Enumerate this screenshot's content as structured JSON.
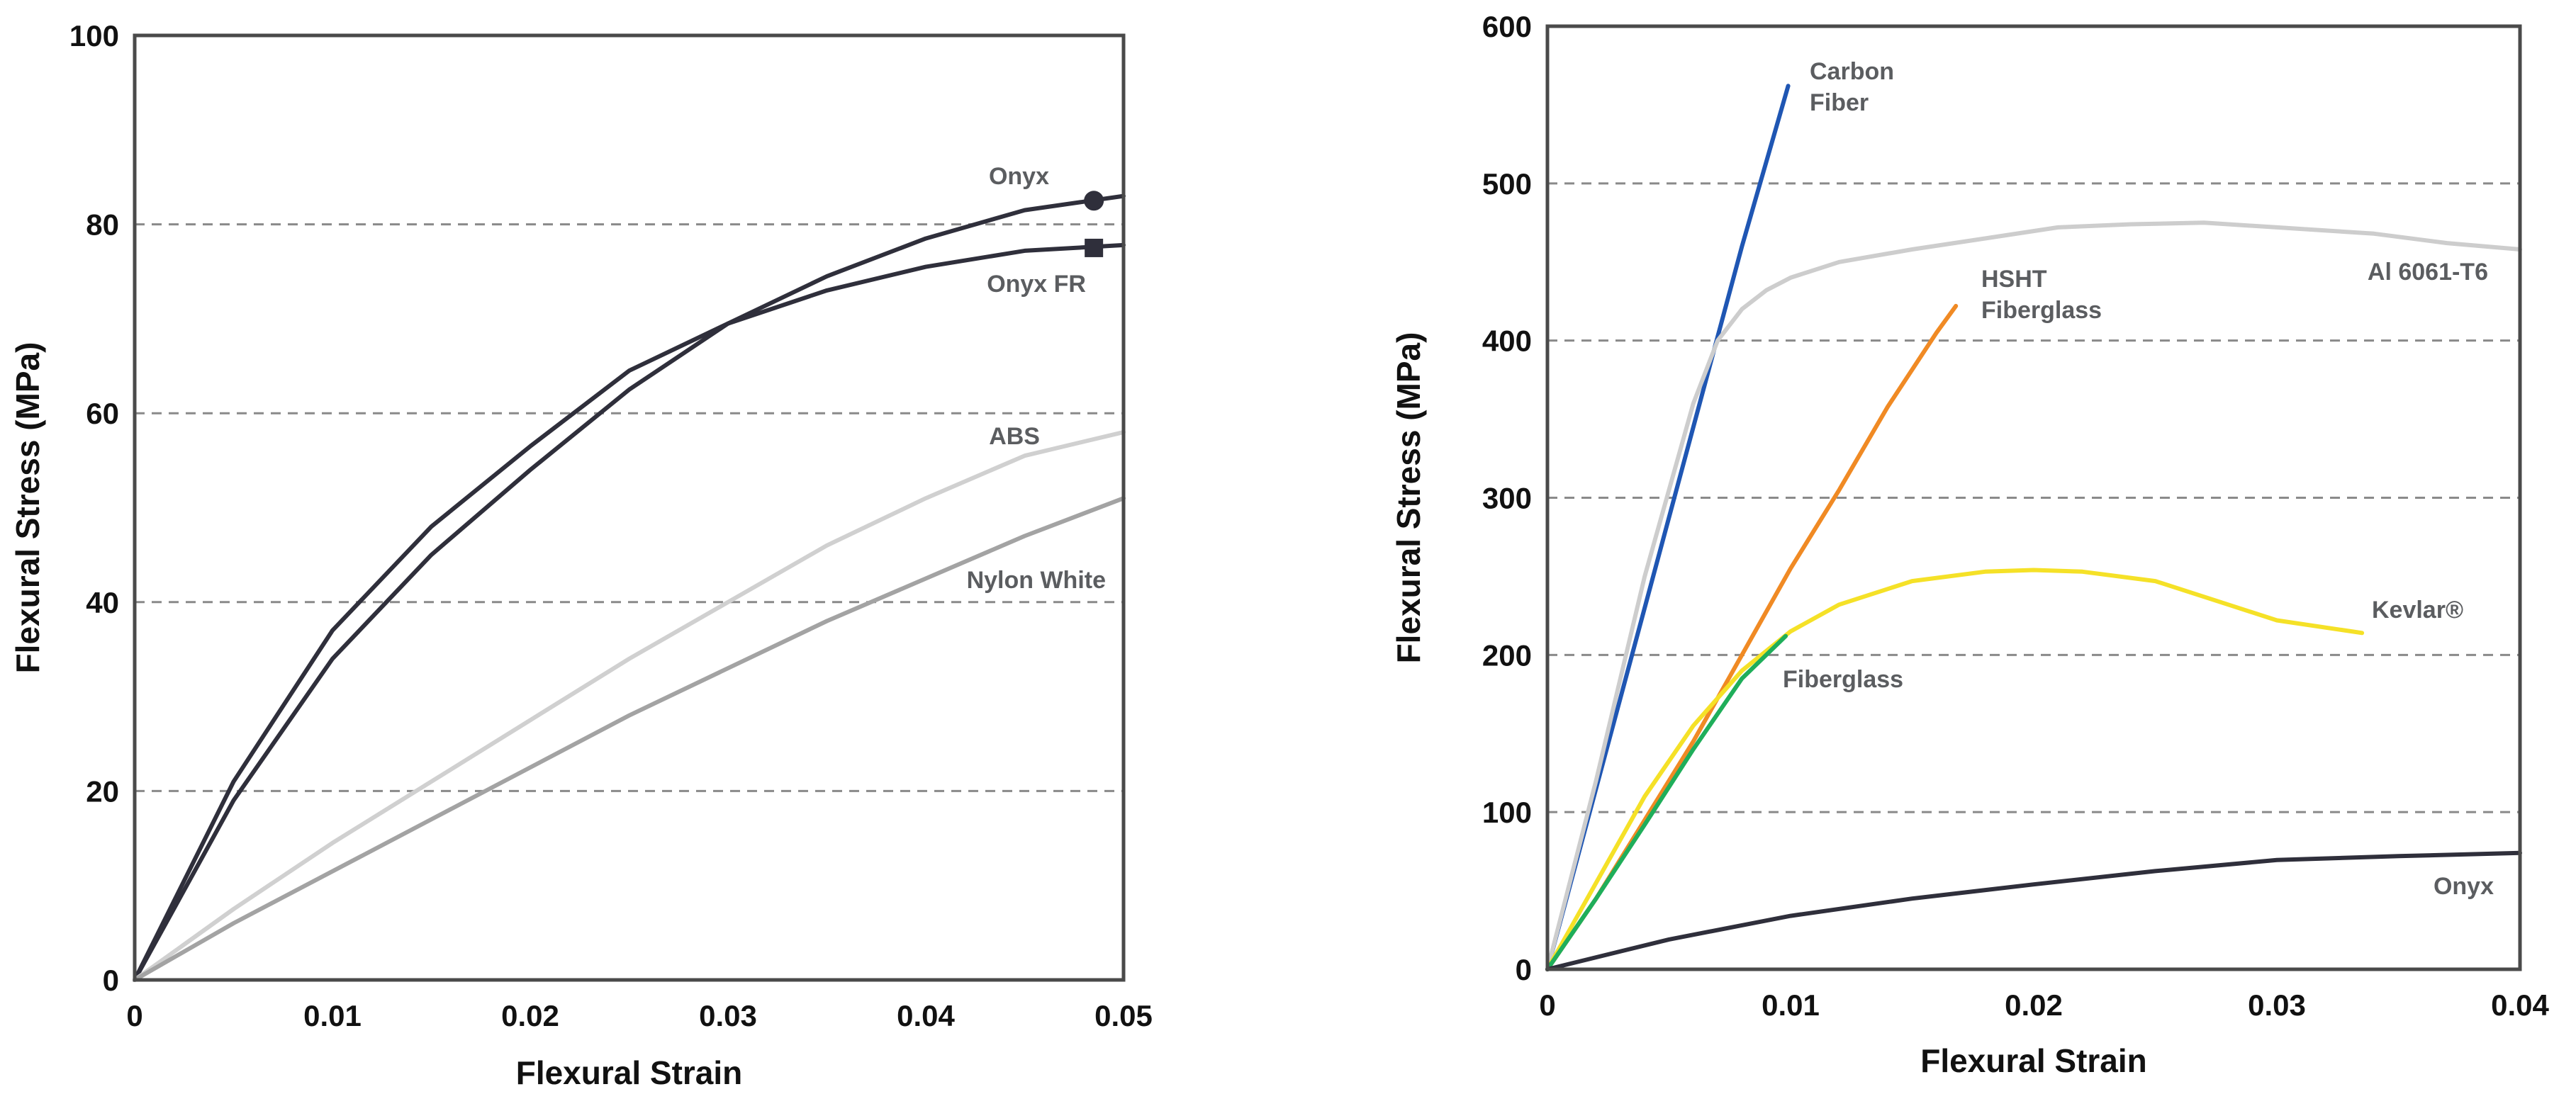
{
  "chart_data": [
    {
      "type": "line",
      "xlabel": "Flexural Strain",
      "ylabel": "Flexural Stress (MPa)",
      "xlim": [
        0,
        0.05
      ],
      "ylim": [
        0,
        100
      ],
      "xticks": [
        "0",
        "0.01",
        "0.02",
        "0.03",
        "0.04",
        "0.05"
      ],
      "yticks": [
        "0",
        "20",
        "40",
        "60",
        "80",
        "100"
      ],
      "grid": "horizontal-dashed",
      "series": [
        {
          "name": "Onyx",
          "label_lines": [
            "Onyx"
          ],
          "color": "#2f2f3b",
          "marker": "circle",
          "marker_at": [
            0.0485,
            82.5
          ],
          "x": [
            0,
            0.005,
            0.01,
            0.015,
            0.02,
            0.025,
            0.03,
            0.035,
            0.04,
            0.045,
            0.05
          ],
          "y": [
            0,
            19,
            34,
            45,
            54,
            62.5,
            69.5,
            74.5,
            78.5,
            81.5,
            83
          ]
        },
        {
          "name": "Onyx FR",
          "label_lines": [
            "Onyx FR"
          ],
          "color": "#2f2f3b",
          "marker": "square",
          "marker_at": [
            0.0485,
            77.5
          ],
          "x": [
            0,
            0.005,
            0.01,
            0.015,
            0.02,
            0.025,
            0.03,
            0.035,
            0.04,
            0.045,
            0.05
          ],
          "y": [
            0,
            21,
            37,
            48,
            56.5,
            64.5,
            69.5,
            73,
            75.5,
            77.2,
            77.8
          ]
        },
        {
          "name": "ABS",
          "label_lines": [
            "ABS"
          ],
          "color": "#d0d0d0",
          "x": [
            0,
            0.005,
            0.01,
            0.015,
            0.02,
            0.025,
            0.03,
            0.035,
            0.04,
            0.045,
            0.05
          ],
          "y": [
            0,
            7.5,
            14.5,
            21,
            27.5,
            34,
            40,
            46,
            51,
            55.5,
            58
          ]
        },
        {
          "name": "Nylon White",
          "label_lines": [
            "Nylon White"
          ],
          "color": "#a3a3a3",
          "x": [
            0,
            0.005,
            0.01,
            0.015,
            0.02,
            0.025,
            0.03,
            0.035,
            0.04,
            0.045,
            0.05
          ],
          "y": [
            0,
            6,
            11.5,
            17,
            22.5,
            28,
            33,
            38,
            42.5,
            47,
            51
          ]
        }
      ]
    },
    {
      "type": "line",
      "xlabel": "Flexural Strain",
      "ylabel": "Flexural Stress (MPa)",
      "xlim": [
        0,
        0.04
      ],
      "ylim": [
        0,
        600
      ],
      "xticks": [
        "0",
        "0.01",
        "0.02",
        "0.03",
        "0.04"
      ],
      "yticks": [
        "0",
        "100",
        "200",
        "300",
        "400",
        "500",
        "600"
      ],
      "grid": "horizontal-dashed",
      "series": [
        {
          "name": "Carbon Fiber",
          "label_lines": [
            "Carbon",
            "Fiber"
          ],
          "color": "#1f56b3",
          "x": [
            0,
            0.002,
            0.004,
            0.006,
            0.008,
            0.0099
          ],
          "y": [
            0,
            115,
            230,
            345,
            460,
            562
          ]
        },
        {
          "name": "Al 6061-T6",
          "label_lines": [
            "Al 6061-T6"
          ],
          "color": "#cdcdcd",
          "x": [
            0,
            0.002,
            0.004,
            0.006,
            0.007,
            0.008,
            0.009,
            0.01,
            0.012,
            0.015,
            0.018,
            0.021,
            0.024,
            0.027,
            0.03,
            0.034,
            0.037,
            0.04
          ],
          "y": [
            0,
            120,
            250,
            360,
            400,
            420,
            432,
            440,
            450,
            458,
            465,
            472,
            474,
            475,
            472,
            468,
            462,
            458
          ]
        },
        {
          "name": "HSHT Fiberglass",
          "label_lines": [
            "HSHT",
            "Fiberglass"
          ],
          "color": "#f08a24",
          "x": [
            0,
            0.002,
            0.004,
            0.006,
            0.008,
            0.01,
            0.012,
            0.014,
            0.016,
            0.0168
          ],
          "y": [
            0,
            45,
            95,
            145,
            200,
            255,
            305,
            358,
            405,
            422
          ]
        },
        {
          "name": "Kevlar®",
          "label_lines": [
            "Kevlar®"
          ],
          "color": "#f5e127",
          "x": [
            0,
            0.002,
            0.004,
            0.006,
            0.008,
            0.01,
            0.012,
            0.015,
            0.018,
            0.02,
            0.022,
            0.025,
            0.028,
            0.03,
            0.0335
          ],
          "y": [
            0,
            55,
            110,
            155,
            190,
            215,
            232,
            247,
            253,
            254,
            253,
            247,
            232,
            222,
            214
          ]
        },
        {
          "name": "Fiberglass",
          "label_lines": [
            "Fiberglass"
          ],
          "color": "#1fae5a",
          "x": [
            0,
            0.002,
            0.004,
            0.006,
            0.008,
            0.0098
          ],
          "y": [
            0,
            45,
            92,
            140,
            185,
            212
          ]
        },
        {
          "name": "Onyx",
          "label_lines": [
            "Onyx"
          ],
          "color": "#2f2f3b",
          "x": [
            0,
            0.005,
            0.01,
            0.015,
            0.02,
            0.025,
            0.03,
            0.035,
            0.04
          ],
          "y": [
            0,
            19,
            34,
            45,
            54,
            62.5,
            69.5,
            72,
            74
          ]
        }
      ]
    }
  ]
}
